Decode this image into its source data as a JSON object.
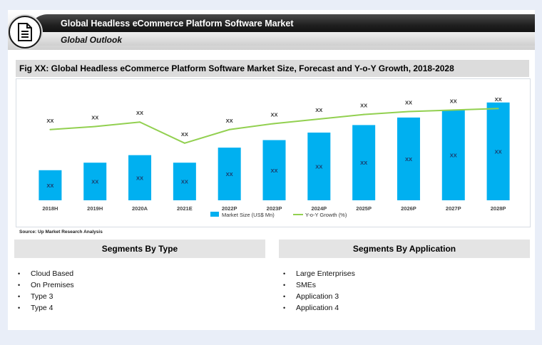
{
  "header": {
    "title": "Global Headless eCommerce Platform Software Market",
    "subtitle": "Global Outlook",
    "logo_icon": "document-icon"
  },
  "figure": {
    "title": "Fig XX: Global Headless eCommerce Platform Software Market Size, Forecast and Y-o-Y Growth, 2018-2028",
    "source": "Source: Up Market Research Analysis"
  },
  "chart_data": {
    "type": "bar",
    "categories": [
      "2018H",
      "2019H",
      "2020A",
      "2021E",
      "2022P",
      "2023P",
      "2024P",
      "2025P",
      "2026P",
      "2027P",
      "2028P"
    ],
    "series": [
      {
        "name": "Market Size (US$ Mn)",
        "type": "bar",
        "color": "#00b0f0",
        "values": [
          20,
          25,
          30,
          25,
          35,
          40,
          45,
          50,
          55,
          60,
          65
        ],
        "labels": [
          "XX",
          "XX",
          "XX",
          "XX",
          "XX",
          "XX",
          "XX",
          "XX",
          "XX",
          "XX",
          "XX"
        ]
      },
      {
        "name": "Y-o-Y Growth (%)",
        "type": "line",
        "color": "#92d050",
        "values": [
          47,
          49,
          52,
          38,
          47,
          51,
          54,
          57,
          59,
          60,
          61
        ],
        "labels": [
          "XX",
          "XX",
          "XX",
          "XX",
          "XX",
          "XX",
          "XX",
          "XX",
          "XX",
          "XX",
          "XX"
        ]
      }
    ],
    "ylim": [
      0,
      72
    ],
    "grid": false,
    "legend": "bottom"
  },
  "segments": {
    "by_type": {
      "heading": "Segments By Type",
      "items": [
        "Cloud Based",
        "On Premises",
        "Type 3",
        "Type 4"
      ]
    },
    "by_application": {
      "heading": "Segments By Application",
      "items": [
        "Large Enterprises",
        "SMEs",
        "Application 3",
        "Application 4"
      ]
    }
  }
}
